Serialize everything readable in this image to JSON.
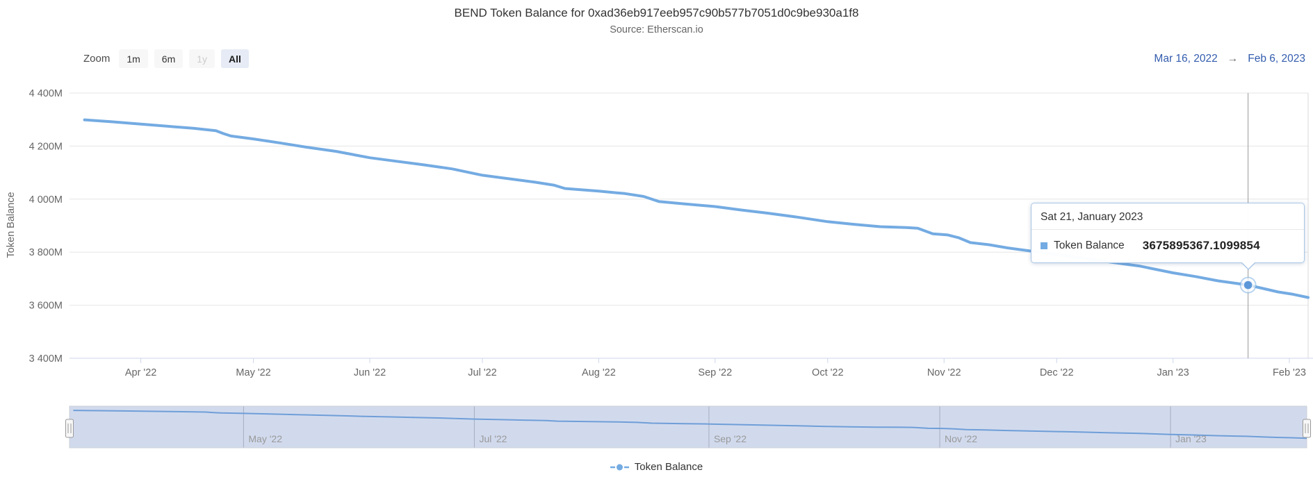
{
  "title": "BEND Token Balance for 0xad36eb917eeb957c90b577b7051d0c9be930a1f8",
  "subtitle": "Source: Etherscan.io",
  "range_selector": {
    "zoom_label": "Zoom",
    "buttons": [
      {
        "label": "1m",
        "state": "normal"
      },
      {
        "label": "6m",
        "state": "normal"
      },
      {
        "label": "1y",
        "state": "disabled"
      },
      {
        "label": "All",
        "state": "selected"
      }
    ],
    "from": "Mar 16, 2022",
    "arrow": "→",
    "to": "Feb 6, 2023"
  },
  "y_axis": {
    "title": "Token Balance"
  },
  "tooltip": {
    "title": "Sat 21, January 2023",
    "series_label": "Token Balance",
    "value": "3675895367.1099854"
  },
  "legend": {
    "label": "Token Balance"
  },
  "navigator": {
    "labels": [
      {
        "text": "May '22",
        "date": "2022-05-01"
      },
      {
        "text": "Jul '22",
        "date": "2022-07-01"
      },
      {
        "text": "Sep '22",
        "date": "2022-09-01"
      },
      {
        "text": "Nov '22",
        "date": "2022-11-01"
      },
      {
        "text": "Jan '23",
        "date": "2023-01-01"
      }
    ]
  },
  "x_axis": {
    "labels": [
      {
        "text": "Apr '22",
        "date": "2022-04-01"
      },
      {
        "text": "May '22",
        "date": "2022-05-01"
      },
      {
        "text": "Jun '22",
        "date": "2022-06-01"
      },
      {
        "text": "Jul '22",
        "date": "2022-07-01"
      },
      {
        "text": "Aug '22",
        "date": "2022-08-01"
      },
      {
        "text": "Sep '22",
        "date": "2022-09-01"
      },
      {
        "text": "Oct '22",
        "date": "2022-10-01"
      },
      {
        "text": "Nov '22",
        "date": "2022-11-01"
      },
      {
        "text": "Dec '22",
        "date": "2022-12-01"
      },
      {
        "text": "Jan '23",
        "date": "2023-01-01"
      },
      {
        "text": "Feb '23",
        "date": "2023-02-01"
      }
    ]
  },
  "colors": {
    "series": "#74abe2",
    "navigator_line": "#6f9ed8",
    "navigator_mask": "rgba(102,133,194,0.3)",
    "accent": "#335cad",
    "grid": "#e6e6e6",
    "axis_line": "#ccd6eb",
    "crosshair": "#999999",
    "text_primary": "#333333",
    "text_secondary": "#666666",
    "text_muted": "#999999",
    "button_bg": "#f7f7f7",
    "button_selected_bg": "#e6ebf5",
    "tooltip_border": "#a9c6e6"
  },
  "chart_data": {
    "type": "line",
    "title": "BEND Token Balance for 0xad36eb917eeb957c90b577b7051d0c9be930a1f8",
    "subtitle": "Source: Etherscan.io",
    "xlabel": "",
    "ylabel": "Token Balance",
    "x_range": [
      "2022-03-16",
      "2023-02-06"
    ],
    "ylim": [
      3400,
      4400
    ],
    "values_unit": "millions of BEND tokens",
    "grid": true,
    "legend_position": "bottom-center",
    "y_ticks": [
      {
        "value": 3400,
        "label": "3 400M"
      },
      {
        "value": 3600,
        "label": "3 600M"
      },
      {
        "value": 3800,
        "label": "3 800M"
      },
      {
        "value": 4000,
        "label": "4 000M"
      },
      {
        "value": 4200,
        "label": "4 200M"
      },
      {
        "value": 4400,
        "label": "4 400M"
      }
    ],
    "series": [
      {
        "name": "Token Balance",
        "color": "#74abe2",
        "points": [
          [
            "2022-03-17",
            4299
          ],
          [
            "2022-03-24",
            4292
          ],
          [
            "2022-04-01",
            4283
          ],
          [
            "2022-04-08",
            4275
          ],
          [
            "2022-04-15",
            4267
          ],
          [
            "2022-04-21",
            4258
          ],
          [
            "2022-04-23",
            4247
          ],
          [
            "2022-04-25",
            4238
          ],
          [
            "2022-05-01",
            4227
          ],
          [
            "2022-05-08",
            4212
          ],
          [
            "2022-05-15",
            4196
          ],
          [
            "2022-05-23",
            4180
          ],
          [
            "2022-06-01",
            4156
          ],
          [
            "2022-06-08",
            4143
          ],
          [
            "2022-06-15",
            4130
          ],
          [
            "2022-06-23",
            4114
          ],
          [
            "2022-07-01",
            4090
          ],
          [
            "2022-07-08",
            4077
          ],
          [
            "2022-07-15",
            4064
          ],
          [
            "2022-07-20",
            4053
          ],
          [
            "2022-07-23",
            4040
          ],
          [
            "2022-08-01",
            4030
          ],
          [
            "2022-08-08",
            4021
          ],
          [
            "2022-08-13",
            4010
          ],
          [
            "2022-08-17",
            3991
          ],
          [
            "2022-08-24",
            3982
          ],
          [
            "2022-09-01",
            3972
          ],
          [
            "2022-09-08",
            3959
          ],
          [
            "2022-09-15",
            3947
          ],
          [
            "2022-09-23",
            3932
          ],
          [
            "2022-10-01",
            3915
          ],
          [
            "2022-10-08",
            3905
          ],
          [
            "2022-10-15",
            3896
          ],
          [
            "2022-10-22",
            3893
          ],
          [
            "2022-10-25",
            3890
          ],
          [
            "2022-10-29",
            3869
          ],
          [
            "2022-11-02",
            3865
          ],
          [
            "2022-11-05",
            3854
          ],
          [
            "2022-11-08",
            3836
          ],
          [
            "2022-11-13",
            3828
          ],
          [
            "2022-11-18",
            3816
          ],
          [
            "2022-12-01",
            3791
          ],
          [
            "2022-12-08",
            3778
          ],
          [
            "2022-12-15",
            3763
          ],
          [
            "2022-12-23",
            3748
          ],
          [
            "2023-01-01",
            3722
          ],
          [
            "2023-01-07",
            3708
          ],
          [
            "2023-01-13",
            3692
          ],
          [
            "2023-01-17",
            3684
          ],
          [
            "2023-01-21",
            3675.8953671099853
          ],
          [
            "2023-01-25",
            3663
          ],
          [
            "2023-01-29",
            3650
          ],
          [
            "2023-02-02",
            3641
          ],
          [
            "2023-02-06",
            3629
          ]
        ]
      }
    ],
    "highlighted_point": {
      "date": "2023-01-21",
      "date_label": "Sat 21, January 2023",
      "value_m": 3675.8953671099853,
      "value_raw": "3675895367.1099854"
    }
  }
}
